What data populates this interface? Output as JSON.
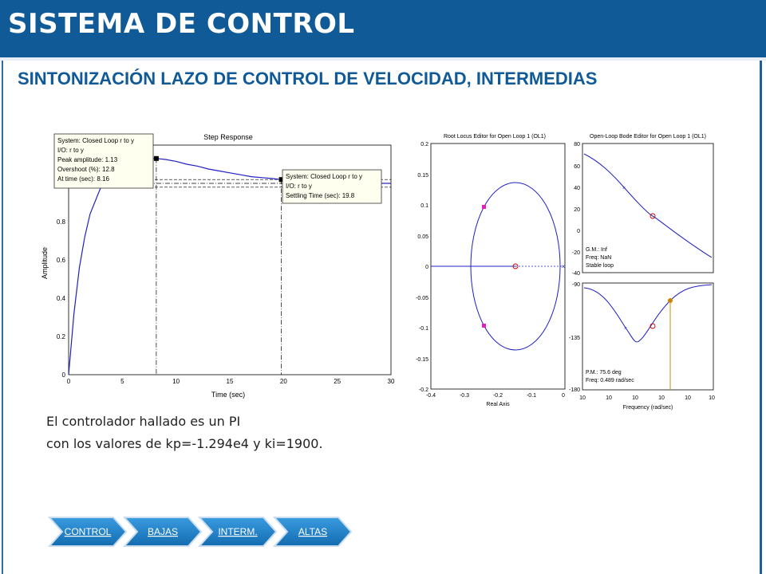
{
  "header": {
    "title": "SISTEMA DE CONTROL"
  },
  "subtitle": "SINTONIZACIÓN LAZO DE CONTROL DE VELOCIDAD, INTERMEDIAS",
  "description": {
    "line1": "El controlador hallado es un PI",
    "line2": "con los valores de kp=-1.294e4 y ki=1900."
  },
  "colors": {
    "header_bg": "#0f5a97",
    "subtitle": "#0f5a97",
    "plot_line": "#2020c0",
    "tab_bg": "#1d7fc4"
  },
  "step_plot": {
    "title": "Step Response",
    "xlabel": "Time (sec)",
    "ylabel": "Amplitude",
    "xticks": [
      "0",
      "5",
      "10",
      "15",
      "20",
      "25",
      "30"
    ],
    "yticks": [
      "0",
      "0.2",
      "0.4",
      "0.6",
      "0.8",
      "1"
    ],
    "tooltip_peak": {
      "line1": "System: Closed Loop r to y",
      "line2": "I/O: r to y",
      "line3": "Peak amplitude: 1.13",
      "line4": "Overshoot (%): 12.8",
      "line5": "At time (sec): 8.16"
    },
    "tooltip_settling": {
      "line1": "System: Closed Loop r to y",
      "line2": "I/O: r to y",
      "line3": "Settling Time (sec): 19.8"
    }
  },
  "chart_data": [
    {
      "type": "line",
      "title": "Step Response",
      "xlabel": "Time (sec)",
      "ylabel": "Amplitude",
      "xlim": [
        0,
        30
      ],
      "ylim": [
        0,
        1.2
      ],
      "series": [
        {
          "x": [
            0,
            0.5,
            1,
            1.5,
            2,
            3,
            4,
            5,
            6,
            7,
            8.16,
            9,
            10,
            11,
            12,
            13,
            14,
            15,
            16,
            17,
            18,
            19,
            19.8,
            21,
            22,
            24,
            26,
            28,
            30
          ],
          "values": [
            0,
            0.32,
            0.56,
            0.72,
            0.84,
            0.98,
            1.06,
            1.1,
            1.12,
            1.13,
            1.13,
            1.125,
            1.115,
            1.1,
            1.09,
            1.075,
            1.065,
            1.055,
            1.045,
            1.035,
            1.03,
            1.025,
            1.02,
            1.012,
            1.008,
            1.004,
            1.002,
            1.001,
            1.0
          ]
        }
      ],
      "annotations": {
        "peak": [
          8.16,
          1.13
        ],
        "settling": [
          19.8,
          1.02
        ]
      }
    }
  ],
  "root_locus": {
    "title": "Root Locus Editor for Open Loop 1 (OL1)",
    "xlabel": "Real Axis",
    "xticks": [
      "-0.4",
      "-0.3",
      "-0.2",
      "-0.1",
      "0"
    ],
    "yticks": [
      "0.2",
      "0.15",
      "0.1",
      "0.05",
      "0",
      "-0.05",
      "-0.1",
      "-0.15",
      "-0.2"
    ]
  },
  "bode": {
    "title": "Open-Loop Bode Editor for Open Loop 1 (OL1)",
    "xlabel": "Frequency (rad/sec)",
    "mag_yticks": [
      "80",
      "60",
      "40",
      "20",
      "0",
      "-20",
      "-40"
    ],
    "phase_yticks": [
      "-90",
      "-135",
      "-180"
    ],
    "xticks": [
      "10",
      "10",
      "10",
      "10",
      "10",
      "10"
    ],
    "mag_info": {
      "line1": "G.M.: Inf",
      "line2": "Freq: NaN",
      "line3": "Stable loop"
    },
    "phase_info": {
      "line1": "P.M.: 75.6 deg",
      "line2": "Freq: 0.489 rad/sec"
    }
  },
  "nav": {
    "items": [
      {
        "label": "CONTROL"
      },
      {
        "label": "BAJAS"
      },
      {
        "label": "INTERM."
      },
      {
        "label": "ALTAS"
      }
    ]
  }
}
